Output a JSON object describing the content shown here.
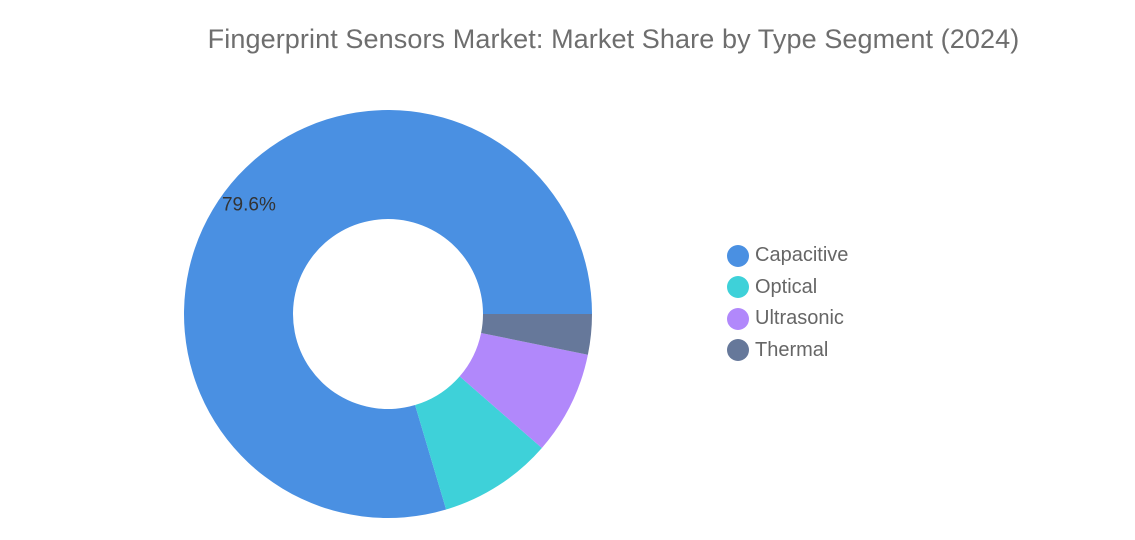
{
  "chart_data": {
    "type": "pie",
    "title": "Fingerprint Sensors Market: Market Share by Type Segment (2024)",
    "categories": [
      "Capacitive",
      "Optical",
      "Ultrasonic",
      "Thermal"
    ],
    "values": [
      79.6,
      9.0,
      8.2,
      3.2
    ],
    "colors": [
      "#4a90e2",
      "#3ed1d9",
      "#b188fb",
      "#66789a"
    ],
    "data_labels": [
      "79.6%",
      "",
      "",
      ""
    ],
    "legend_position": "right",
    "donut": true
  }
}
